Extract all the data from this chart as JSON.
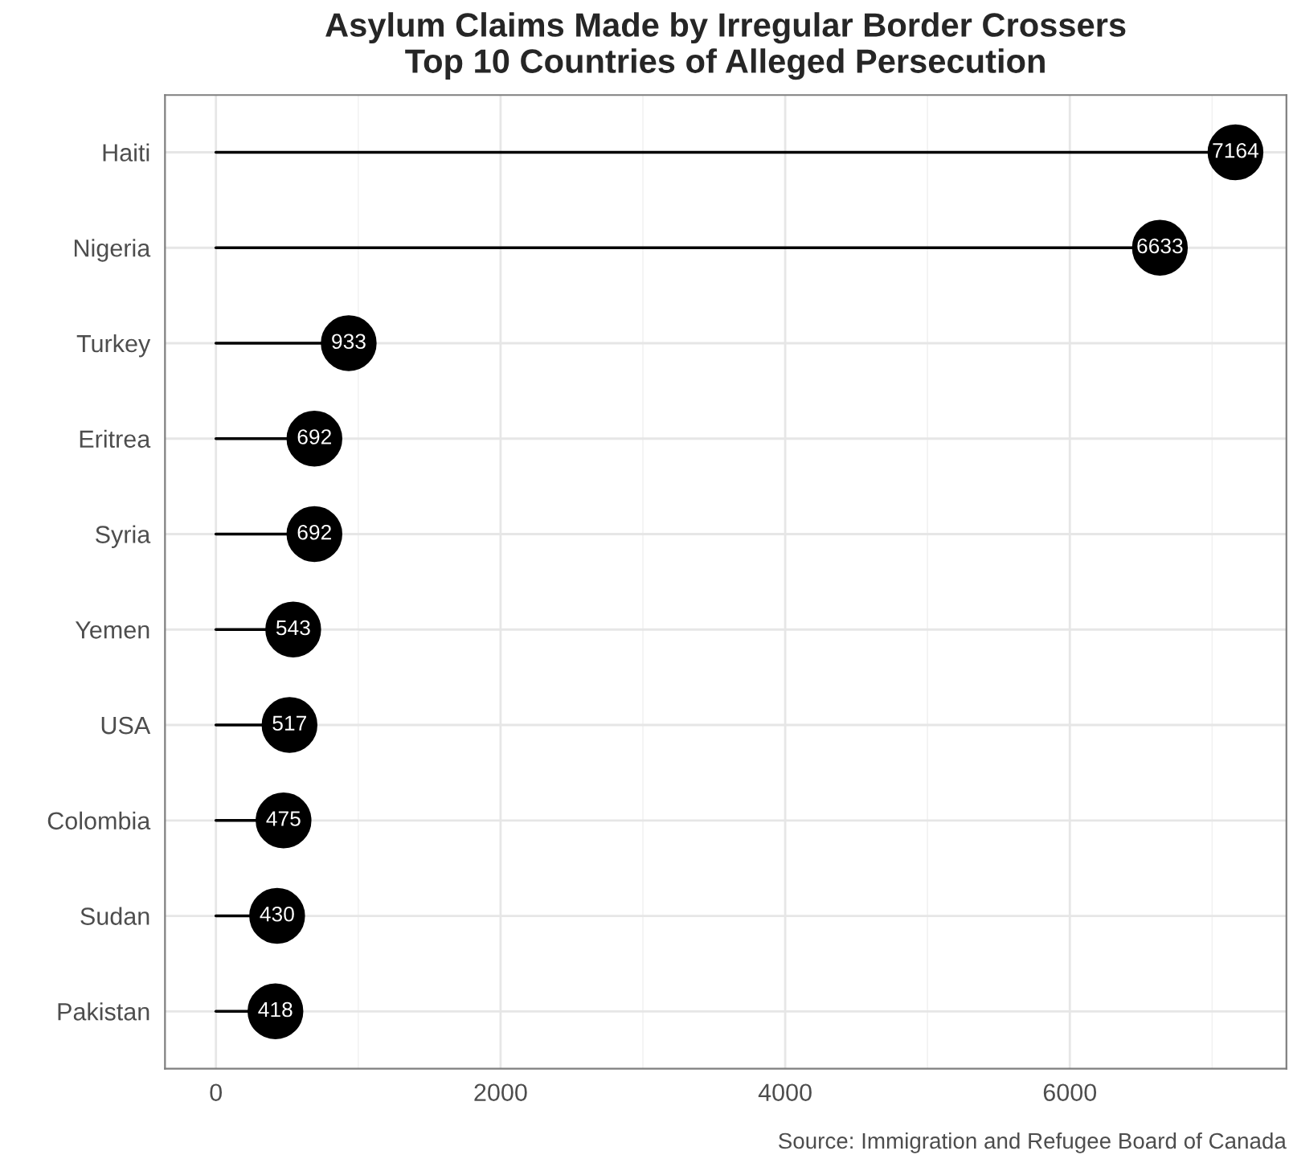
{
  "chart_data": {
    "type": "lollipop",
    "orientation": "horizontal",
    "title": "Asylum Claims Made by Irregular Border Crossers\nTop 10 Countries of Alleged Persecution",
    "categories": [
      "Haiti",
      "Nigeria",
      "Turkey",
      "Eritrea",
      "Syria",
      "Yemen",
      "USA",
      "Colombia",
      "Sudan",
      "Pakistan"
    ],
    "values": [
      7164,
      6633,
      933,
      692,
      692,
      543,
      517,
      475,
      430,
      418
    ],
    "color": "#000000",
    "data_labels": true,
    "xlim": [
      -358,
      7522
    ],
    "xticks": [
      0,
      2000,
      4000,
      6000
    ],
    "grid": true,
    "marker": "circle",
    "annotations": [
      "Source: Immigration and Refugee Board of Canada"
    ]
  }
}
